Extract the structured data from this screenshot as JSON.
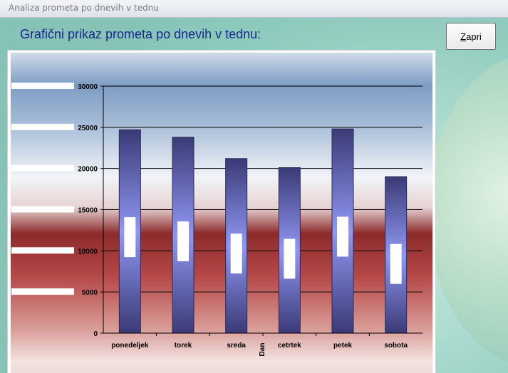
{
  "window": {
    "title": "Analiza prometa po dnevih v tednu"
  },
  "header": {
    "title": "Grafični prikaz prometa po dnevih v tednu:"
  },
  "toolbar": {
    "close_label_mnemonic": "Z",
    "close_label_rest": "apri"
  },
  "colors": {
    "bar": "#6f73c9",
    "bar_dark": "#3b3a77",
    "title": "#1a2a8e"
  },
  "chart_data": {
    "type": "bar",
    "categories": [
      "ponedeljek",
      "torek",
      "sreda",
      "cetrtek",
      "petek",
      "sobota"
    ],
    "values": [
      24700,
      23800,
      21200,
      20100,
      24800,
      19000
    ],
    "title": "",
    "xlabel": "Dan",
    "ylabel": "",
    "ylim": [
      0,
      30000
    ],
    "yticks": [
      0,
      5000,
      10000,
      15000,
      20000,
      25000,
      30000
    ],
    "grid": true,
    "legend": "none"
  }
}
